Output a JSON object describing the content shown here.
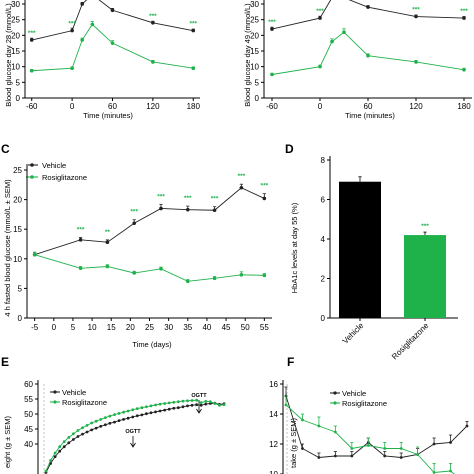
{
  "colors": {
    "vehicle": "#222222",
    "rosiglitazone": "#1fb24b",
    "axis": "#000000"
  },
  "panels": {
    "A": {
      "ylabel": "Blood glucose day 28 (mmol/L)",
      "xlabel": "Time (minutes)"
    },
    "B": {
      "ylabel": "Blood glucose day 49 (mmol/L)",
      "xlabel": "Time (minutes)"
    },
    "C": {
      "letter": "C",
      "ylabel": "4 h fasted blood glucose (mmol/L ± SEM)",
      "xlabel": "Time (days)"
    },
    "D": {
      "letter": "D",
      "ylabel": "HbA1c levels at day 55 (%)"
    },
    "E": {
      "letter": "E",
      "ylabel": "eight (g ± SEM)",
      "annotations": [
        "OGTT",
        "OGTT"
      ]
    },
    "F": {
      "letter": "F",
      "ylabel": "take (g ± SEM)"
    }
  },
  "legend": {
    "vehicle": "Vehicle",
    "rosiglitazone": "Rosiglitazone"
  },
  "chart_data": [
    {
      "panel": "A",
      "type": "line",
      "x": [
        -60,
        0,
        15,
        30,
        60,
        120,
        180
      ],
      "xticks": [
        "-60",
        "0",
        "60",
        "120",
        "180"
      ],
      "xlim": [
        -70,
        190
      ],
      "ylim": [
        0,
        30
      ],
      "yticks": [
        "0",
        "5",
        "10",
        "15",
        "20",
        "25",
        "30"
      ],
      "series": [
        {
          "name": "Vehicle",
          "values": [
            18.5,
            21.5,
            30,
            33,
            28,
            24,
            21.5
          ],
          "errors": [
            0.6,
            0.8,
            0.5,
            0.5,
            0.6,
            0.5,
            0.5
          ]
        },
        {
          "name": "Rosiglitazone",
          "values": [
            8.7,
            9.5,
            18.5,
            23.5,
            17.5,
            11.5,
            9.5
          ],
          "errors": [
            0.4,
            0.4,
            0.6,
            0.9,
            0.8,
            0.5,
            0.4
          ]
        }
      ],
      "significance": [
        "***",
        "***",
        "***",
        "***",
        "***"
      ]
    },
    {
      "panel": "B",
      "type": "line",
      "x": [
        -60,
        0,
        15,
        30,
        60,
        120,
        180
      ],
      "xticks": [
        "-60",
        "0",
        "60",
        "120",
        "180"
      ],
      "xlim": [
        -70,
        190
      ],
      "ylim": [
        0,
        30
      ],
      "yticks": [
        "0",
        "5",
        "10",
        "15",
        "20",
        "25",
        "30"
      ],
      "series": [
        {
          "name": "Vehicle",
          "values": [
            22,
            25.5,
            32,
            32,
            29,
            26,
            25.5
          ],
          "errors": [
            0.6,
            0.6,
            0.5,
            0.5,
            0.5,
            0.5,
            0.5
          ]
        },
        {
          "name": "Rosiglitazone",
          "values": [
            7.5,
            10,
            18,
            21,
            13.5,
            11.5,
            9
          ],
          "errors": [
            0.4,
            0.5,
            0.9,
            1.1,
            0.6,
            0.5,
            0.5
          ]
        }
      ],
      "significance": [
        "***",
        "***",
        "***",
        "***",
        "***"
      ]
    },
    {
      "panel": "C",
      "type": "line",
      "x": [
        -5,
        7,
        14,
        21,
        28,
        35,
        42,
        49,
        55
      ],
      "xticks": [
        "-5",
        "0",
        "5",
        "10",
        "15",
        "20",
        "25",
        "30",
        "35",
        "40",
        "45",
        "50",
        "55"
      ],
      "xlim": [
        -7,
        57
      ],
      "ylim": [
        0,
        25
      ],
      "yticks": [
        "0",
        "5",
        "10",
        "15",
        "20",
        "25"
      ],
      "series": [
        {
          "name": "Vehicle",
          "values": [
            10.7,
            13.2,
            12.8,
            16,
            18.5,
            18.3,
            18.2,
            22,
            20.2
          ],
          "errors": [
            0.4,
            0.4,
            0.4,
            0.6,
            0.7,
            0.6,
            0.6,
            0.6,
            0.8
          ]
        },
        {
          "name": "Rosiglitazone",
          "values": [
            10.7,
            8.4,
            8.7,
            7.6,
            8.3,
            6.2,
            6.7,
            7.3,
            7.2
          ],
          "errors": [
            0.4,
            0.3,
            0.3,
            0.3,
            0.3,
            0.3,
            0.3,
            0.5,
            0.3
          ]
        }
      ],
      "significance": [
        "***",
        "**",
        "***",
        "***",
        "***",
        "***",
        "***",
        "***"
      ],
      "ylabel": "4 h fasted blood glucose (mmol/L ± SEM)",
      "xlabel": "Time (days)"
    },
    {
      "panel": "D",
      "type": "bar",
      "categories": [
        "Vehicle",
        "Rosiglitazone"
      ],
      "values": [
        6.9,
        4.2
      ],
      "errors": [
        0.25,
        0.15
      ],
      "ylim": [
        0,
        8
      ],
      "yticks": [
        "0",
        "2",
        "4",
        "6",
        "8"
      ],
      "significance": "***",
      "ylabel": "HbA1c levels at day 55 (%)"
    },
    {
      "panel": "E",
      "type": "line",
      "ylim": [
        30,
        60
      ],
      "yticks": [
        "40",
        "45",
        "50",
        "55",
        "60"
      ],
      "series": [
        {
          "name": "Vehicle",
          "values": [
            30.5,
            33.5,
            35.8,
            37.6,
            39.1,
            40.4,
            41.5,
            42.5,
            43.3,
            44,
            44.7,
            45.3,
            45.9,
            46.4,
            46.9,
            47.3,
            47.8,
            48.2,
            48.6,
            49,
            49.4,
            49.7,
            50.1,
            50.4,
            50.7,
            51,
            51.3,
            51.6,
            51.9,
            52.1,
            52.4,
            52.7,
            52.9,
            53.1,
            52.9,
            53.3,
            53.5,
            53.6,
            53.2,
            53.4
          ]
        },
        {
          "name": "Rosiglitazone",
          "values": [
            31,
            34.5,
            37,
            39.1,
            40.8,
            42.2,
            43.4,
            44.5,
            45.4,
            46.2,
            47,
            47.6,
            48.2,
            48.8,
            49.3,
            49.8,
            50.2,
            50.6,
            51,
            51.4,
            51.8,
            52.1,
            52.4,
            52.7,
            53,
            53.3,
            53.5,
            53.7,
            53.9,
            54.1,
            54.3,
            54.4,
            54.5,
            54.6,
            53.8,
            54.2,
            54.1,
            53.5,
            52.9,
            53.1
          ]
        }
      ]
    },
    {
      "panel": "F",
      "type": "line",
      "ylim": [
        10,
        16
      ],
      "yticks": [
        "10",
        "12",
        "14",
        "16"
      ],
      "series": [
        {
          "name": "Vehicle",
          "values": [
            15.2,
            11.7,
            11.1,
            11.2,
            11.2,
            12.1,
            11.2,
            11.1,
            11.3,
            12.0,
            12.1,
            13.2
          ],
          "errors": [
            0.6,
            0.3,
            0.3,
            0.3,
            0.3,
            0.3,
            0.3,
            0.3,
            0.4,
            0.4,
            0.5,
            0.3
          ]
        },
        {
          "name": "Rosiglitazone",
          "values": [
            14.6,
            13.6,
            13.2,
            12.8,
            11.7,
            11.9,
            11.7,
            11.7,
            11.3,
            10.1,
            10.2,
            9.3
          ],
          "errors": [
            0.6,
            0.4,
            0.6,
            0.4,
            0.4,
            0.5,
            0.4,
            0.4,
            0.5,
            0.6,
            0.5,
            0.4
          ]
        }
      ]
    }
  ]
}
